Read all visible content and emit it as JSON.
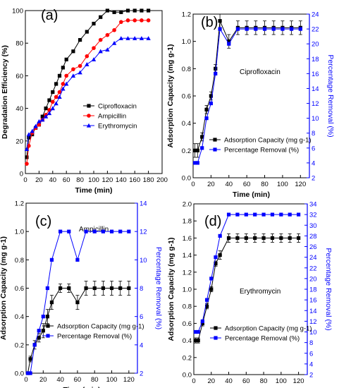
{
  "chart_data": [
    {
      "panel": "(a)",
      "type": "line",
      "title": "",
      "xlabel": "Time (min)",
      "ylabel": "Degradation Efficiency (%)",
      "xlim": [
        0,
        200
      ],
      "ylim": [
        0,
        100
      ],
      "xticks": [
        0,
        20,
        40,
        60,
        80,
        100,
        120,
        140,
        160,
        180,
        200
      ],
      "yticks": [
        0,
        20,
        40,
        60,
        80,
        100
      ],
      "legend_position": "center-right",
      "series": [
        {
          "name": "Ciprofloxacin",
          "color": "#000000",
          "marker": "square",
          "x": [
            2,
            5,
            10,
            15,
            20,
            25,
            30,
            35,
            40,
            45,
            50,
            55,
            60,
            70,
            80,
            90,
            100,
            110,
            120,
            130,
            140,
            150,
            160,
            170,
            180
          ],
          "y": [
            10,
            22,
            24,
            28,
            30,
            35,
            40,
            45,
            50,
            55,
            60,
            65,
            70,
            75,
            82,
            87,
            92,
            96,
            100,
            99,
            99,
            100,
            100,
            100,
            100
          ]
        },
        {
          "name": "Ampicillin",
          "color": "#ff0000",
          "marker": "circle",
          "x": [
            2,
            5,
            10,
            15,
            20,
            25,
            30,
            35,
            40,
            45,
            50,
            55,
            60,
            70,
            80,
            90,
            100,
            110,
            120,
            130,
            140,
            150,
            160,
            170,
            180
          ],
          "y": [
            6,
            17,
            25,
            28,
            30,
            33,
            36,
            39,
            44,
            47,
            50,
            55,
            60,
            64,
            66,
            72,
            77,
            82,
            85,
            88,
            93,
            94,
            94,
            94,
            94
          ]
        },
        {
          "name": "Erythromycin",
          "color": "#0000ff",
          "marker": "triangle",
          "x": [
            2,
            5,
            10,
            15,
            20,
            25,
            30,
            35,
            40,
            45,
            50,
            55,
            60,
            70,
            80,
            90,
            100,
            110,
            120,
            130,
            140,
            150,
            160,
            170,
            180
          ],
          "y": [
            15,
            24,
            26,
            29,
            32,
            33,
            35,
            37,
            40,
            43,
            47,
            52,
            55,
            60,
            62,
            67,
            70,
            75,
            76,
            80,
            83,
            83,
            83,
            83,
            83
          ]
        }
      ]
    },
    {
      "panel": "(b)",
      "type": "line",
      "title": "Ciprofloxacin",
      "xlabel": "Time (min)",
      "ylabel": "Adsorption Capacity (mg g-1)",
      "ylabel_right": "Percentage Removal (%)",
      "xlim": [
        0,
        130
      ],
      "ylim": [
        0,
        1.2
      ],
      "ylim_right": [
        2,
        24
      ],
      "xticks": [
        0,
        20,
        40,
        60,
        80,
        100,
        120
      ],
      "yticks": [
        0.0,
        0.2,
        0.4,
        0.6,
        0.8,
        1.0,
        1.2
      ],
      "yticks_right": [
        2,
        4,
        6,
        8,
        10,
        12,
        14,
        16,
        18,
        20,
        22,
        24
      ],
      "legend_position": "bottom-center",
      "series": [
        {
          "name": "Adsorption Capacity (mg g-1)",
          "color": "#000000",
          "marker": "square",
          "axis": "left",
          "x": [
            2,
            5,
            10,
            15,
            20,
            25,
            30,
            40,
            50,
            60,
            70,
            80,
            90,
            100,
            110,
            120
          ],
          "y": [
            0.2,
            0.2,
            0.3,
            0.5,
            0.6,
            0.8,
            1.15,
            1.0,
            1.1,
            1.1,
            1.1,
            1.1,
            1.1,
            1.1,
            1.1,
            1.1
          ],
          "yerr": [
            0.05,
            0.05,
            0.03,
            0.03,
            0.03,
            0.03,
            0.05,
            0.05,
            0.05,
            0.05,
            0.05,
            0.05,
            0.05,
            0.05,
            0.05,
            0.05
          ]
        },
        {
          "name": "Percentage Removal (%)",
          "color": "#0000ff",
          "marker": "square",
          "axis": "right",
          "x": [
            2,
            5,
            10,
            15,
            20,
            25,
            30,
            40,
            50,
            60,
            70,
            80,
            90,
            100,
            110,
            120
          ],
          "y": [
            4,
            4,
            6,
            10,
            12,
            16,
            22,
            20,
            22,
            22,
            22,
            22,
            22,
            22,
            22,
            22
          ]
        }
      ]
    },
    {
      "panel": "(c)",
      "type": "line",
      "title": "Ampicillin",
      "xlabel": "Time (min)",
      "ylabel": "Adsorption Capacity (mg g-1)",
      "ylabel_right": "Percentage Removal (%)",
      "xlim": [
        0,
        130
      ],
      "ylim": [
        0,
        1.2
      ],
      "ylim_right": [
        2,
        14
      ],
      "xticks": [
        0,
        20,
        40,
        60,
        80,
        100,
        120
      ],
      "yticks": [
        0.0,
        0.2,
        0.4,
        0.6,
        0.8,
        1.0,
        1.2
      ],
      "yticks_right": [
        2,
        4,
        6,
        8,
        10,
        12,
        14
      ],
      "legend_position": "bottom-center",
      "series": [
        {
          "name": "Adsorption Capacity (mg g-1)",
          "color": "#000000",
          "marker": "square",
          "axis": "left",
          "x": [
            2,
            5,
            10,
            15,
            20,
            25,
            30,
            40,
            50,
            60,
            70,
            80,
            90,
            100,
            110,
            120
          ],
          "y": [
            0.0,
            0.1,
            0.2,
            0.25,
            0.3,
            0.4,
            0.5,
            0.6,
            0.6,
            0.5,
            0.6,
            0.6,
            0.6,
            0.6,
            0.6,
            0.6
          ],
          "yerr": [
            0,
            0.02,
            0.03,
            0.03,
            0.05,
            0.05,
            0.05,
            0.03,
            0.03,
            0.05,
            0.05,
            0.05,
            0.05,
            0.05,
            0.05,
            0.05
          ]
        },
        {
          "name": "Percentage Removal (%)",
          "color": "#0000ff",
          "marker": "square",
          "axis": "right",
          "x": [
            2,
            5,
            10,
            15,
            20,
            25,
            30,
            40,
            50,
            60,
            70,
            80,
            90,
            100,
            110,
            120
          ],
          "y": [
            2,
            2,
            4,
            5,
            6,
            8,
            10,
            12,
            12,
            10,
            12,
            12,
            12,
            12,
            12,
            12
          ]
        }
      ]
    },
    {
      "panel": "(d)",
      "type": "line",
      "title": "Erythromycin",
      "xlabel": "Time (min)",
      "ylabel": "Adsorption Capacity (mg g-1)",
      "ylabel_right": "Percentage Removal (%)",
      "xlim": [
        0,
        130
      ],
      "ylim": [
        0,
        2.0
      ],
      "ylim_right": [
        2,
        34
      ],
      "xticks": [
        0,
        20,
        40,
        60,
        80,
        100,
        120
      ],
      "yticks": [
        0.0,
        0.2,
        0.4,
        0.6,
        0.8,
        1.0,
        1.2,
        1.4,
        1.6,
        1.8,
        2.0
      ],
      "yticks_right": [
        2,
        4,
        6,
        8,
        10,
        12,
        14,
        16,
        18,
        20,
        22,
        24,
        26,
        28,
        30,
        32,
        34
      ],
      "legend_position": "bottom-center",
      "series": [
        {
          "name": "Adsorption Capacity (mg g-1)",
          "color": "#000000",
          "marker": "square",
          "axis": "left",
          "x": [
            2,
            5,
            10,
            15,
            20,
            25,
            30,
            40,
            50,
            60,
            70,
            80,
            90,
            100,
            110,
            120
          ],
          "y": [
            0.4,
            0.4,
            0.6,
            0.8,
            1.0,
            1.3,
            1.4,
            1.6,
            1.6,
            1.6,
            1.6,
            1.6,
            1.6,
            1.6,
            1.6,
            1.6
          ],
          "yerr": [
            0.03,
            0.03,
            0.03,
            0.03,
            0.03,
            0.03,
            0.05,
            0.05,
            0.05,
            0.05,
            0.05,
            0.05,
            0.05,
            0.05,
            0.05,
            0.05
          ]
        },
        {
          "name": "Percentage Removal (%)",
          "color": "#0000ff",
          "marker": "square",
          "axis": "right",
          "x": [
            2,
            5,
            10,
            15,
            20,
            25,
            30,
            40,
            50,
            60,
            70,
            80,
            90,
            100,
            110,
            120
          ],
          "y": [
            10,
            10,
            12,
            16,
            20,
            24,
            28,
            32,
            32,
            32,
            32,
            32,
            32,
            32,
            32,
            32
          ]
        }
      ]
    }
  ]
}
